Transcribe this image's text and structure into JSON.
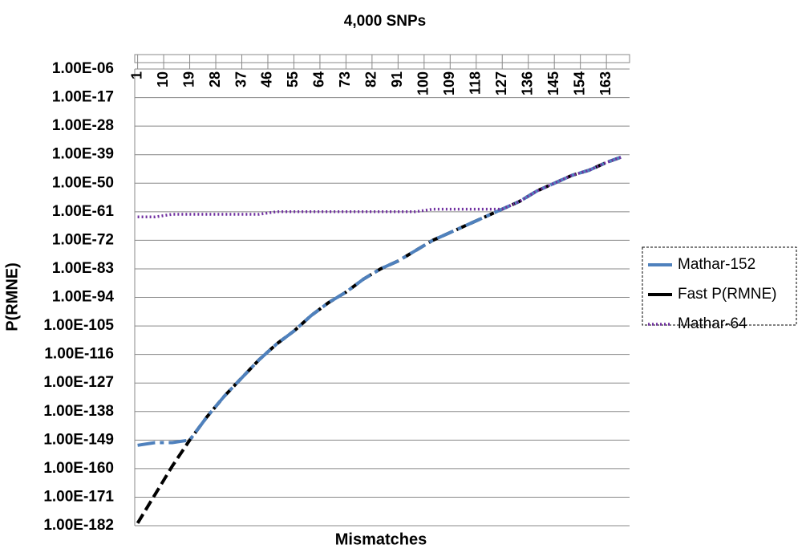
{
  "chart_data": {
    "type": "line",
    "title": "4,000 SNPs",
    "x_label": "Mismatches",
    "y_label": "P(RMNE)",
    "log_y": true,
    "grid": true,
    "legend": "right",
    "x": [
      1,
      7,
      13,
      19,
      25,
      31,
      37,
      43,
      49,
      55,
      61,
      67,
      73,
      79,
      85,
      91,
      97,
      103,
      109,
      115,
      121,
      127,
      133,
      139,
      145,
      151,
      157,
      163,
      168
    ],
    "xlim": [
      0,
      171
    ],
    "xticks": [
      1,
      10,
      19,
      28,
      37,
      46,
      55,
      64,
      73,
      82,
      91,
      100,
      109,
      118,
      127,
      136,
      145,
      154,
      163
    ],
    "ylim": [
      1e-182,
      1e-06
    ],
    "yticks": [
      {
        "value": 1e-182,
        "label": "1.00E-182"
      },
      {
        "value": 1e-171,
        "label": "1.00E-171"
      },
      {
        "value": 1e-160,
        "label": "1.00E-160"
      },
      {
        "value": 1e-149,
        "label": "1.00E-149"
      },
      {
        "value": 1e-138,
        "label": "1.00E-138"
      },
      {
        "value": 1e-127,
        "label": "1.00E-127"
      },
      {
        "value": 1e-116,
        "label": "1.00E-116"
      },
      {
        "value": 1e-105,
        "label": "1.00E-105"
      },
      {
        "value": 1e-94,
        "label": "1.00E-94"
      },
      {
        "value": 1e-83,
        "label": "1.00E-83"
      },
      {
        "value": 1e-72,
        "label": "1.00E-72"
      },
      {
        "value": 1e-61,
        "label": "1.00E-61"
      },
      {
        "value": 1e-50,
        "label": "1.00E-50"
      },
      {
        "value": 1e-39,
        "label": "1.00E-39"
      },
      {
        "value": 1e-28,
        "label": "1.00E-28"
      },
      {
        "value": 1e-17,
        "label": "1.00E-17"
      },
      {
        "value": 1e-06,
        "label": "1.00E-06"
      }
    ],
    "series": [
      {
        "name": "Mathar-152",
        "color": "#4f81bd",
        "style": "dash-dot",
        "values": [
          1e-151,
          1e-150,
          1e-150,
          1e-149,
          1e-140,
          1e-132,
          1e-125,
          1e-118,
          1e-112,
          1e-107,
          1e-101,
          1e-96,
          1e-92,
          1e-87,
          1e-83,
          1e-80,
          1e-76,
          1e-72,
          1e-69,
          1e-66,
          1e-63,
          1e-60,
          1e-57,
          1e-53,
          1e-50,
          1e-47,
          1e-45,
          1e-42,
          1e-40
        ]
      },
      {
        "name": "Fast P(RMNE)",
        "color": "#000000",
        "style": "dashed",
        "values": [
          1e-181,
          1e-170,
          1e-159,
          1e-149,
          1e-140,
          1e-132,
          1e-125,
          1e-118,
          1e-112,
          1e-107,
          1e-101,
          1e-96,
          1e-92,
          1e-87,
          1e-83,
          1e-80,
          1e-76,
          1e-72,
          1e-69,
          1e-66,
          1e-63,
          1e-60,
          1e-57,
          1e-53,
          1e-50,
          1e-47,
          1e-45,
          1e-42,
          1e-40
        ]
      },
      {
        "name": "Mathar-64",
        "color": "#7030a0",
        "style": "dotted",
        "values": [
          1e-63,
          1e-63,
          1e-62,
          1e-62,
          1e-62,
          1e-62,
          1e-62,
          1e-62,
          1e-61,
          1e-61,
          1e-61,
          1e-61,
          1e-61,
          1e-61,
          1e-61,
          1e-61,
          1e-61,
          1e-60,
          1e-60,
          1e-60,
          1e-60,
          1e-60,
          1e-57,
          1e-53,
          1e-50,
          1e-47,
          1e-45,
          1e-42,
          1e-40
        ]
      }
    ]
  }
}
